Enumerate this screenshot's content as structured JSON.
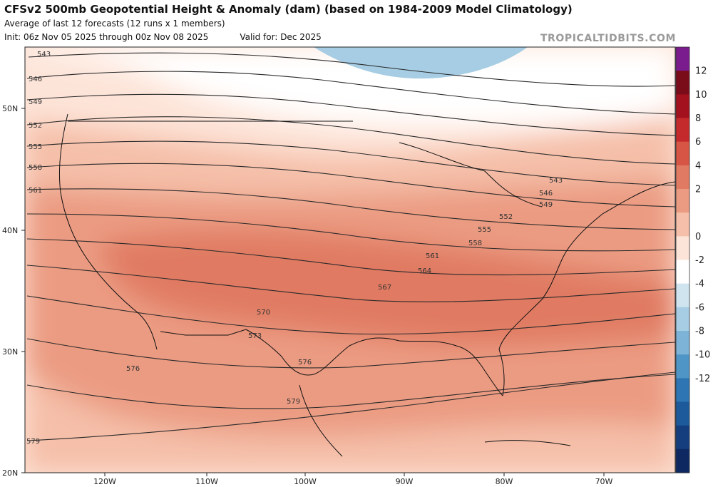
{
  "header": {
    "title": "CFSv2 500mb Geopotential Height & Anomaly (dam) (based on 1984-2009 Model Climatology)",
    "subtitle": "Average of last 12 forecasts (12 runs x 1 members)",
    "init": "Init: 06z Nov 05 2025 through 00z Nov 08 2025",
    "valid": "Valid for: Dec 2025",
    "brand": "TROPICALTIDBITS.COM"
  },
  "map": {
    "lat_labels": [
      "50N",
      "40N",
      "30N",
      "20N"
    ],
    "lon_labels": [
      "120W",
      "110W",
      "100W",
      "90W",
      "80W",
      "70W"
    ],
    "height_contours": [
      "543",
      "546",
      "549",
      "552",
      "555",
      "558",
      "561",
      "564",
      "567",
      "570",
      "573",
      "576",
      "579"
    ]
  },
  "colorbar": {
    "labels": [
      "12",
      "10",
      "8",
      "6",
      "4",
      "2",
      "0",
      "-2",
      "-4",
      "-6",
      "-8",
      "-10",
      "-12"
    ],
    "colors": [
      "#7b1c8e",
      "#7a0c1a",
      "#a3101e",
      "#c42a2b",
      "#d65544",
      "#e07a62",
      "#eb9b82",
      "#f5bfa9",
      "#fde4d8",
      "#ffffff",
      "#cfe4ef",
      "#a6cde3",
      "#7cb3d6",
      "#4f95c6",
      "#2e76b3",
      "#1d5a9b",
      "#143e7e",
      "#0e2862"
    ]
  }
}
